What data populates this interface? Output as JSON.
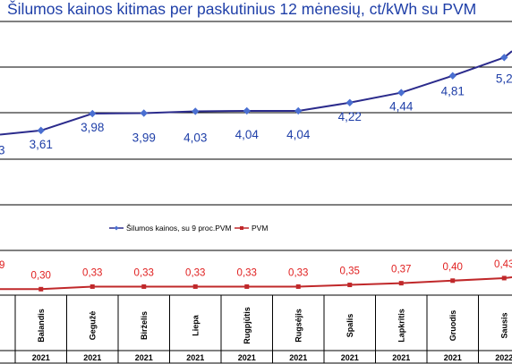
{
  "chart_data": {
    "type": "line",
    "title": "Šilumos kainos kitimas per paskutinius 12 mėnesių, ct/kWh su PVM",
    "categories": [
      "Balandis",
      "Gegužė",
      "Birželis",
      "Liepa",
      "Rugpjūtis",
      "Rugsėjis",
      "Spalis",
      "Lapkritis",
      "Gruodis",
      "Sausis"
    ],
    "years": [
      "2021",
      "2021",
      "2021",
      "2021",
      "2021",
      "2021",
      "2021",
      "2021",
      "2021",
      "2022"
    ],
    "edge_left": {
      "price_label": "3",
      "vat_label": "9"
    },
    "series": [
      {
        "name": "Šilumos kainos, su 9 proc.PVM",
        "color": "#2b2b8c",
        "values": [
          3.61,
          3.98,
          3.99,
          4.03,
          4.04,
          4.04,
          4.22,
          4.44,
          4.81,
          5.21
        ],
        "labels": [
          "3,61",
          "3,98",
          "3,99",
          "4,03",
          "4,04",
          "4,04",
          "4,22",
          "4,44",
          "4,81",
          "5,2"
        ]
      },
      {
        "name": "PVM",
        "color": "#c0282a",
        "values": [
          0.3,
          0.33,
          0.33,
          0.33,
          0.33,
          0.33,
          0.35,
          0.37,
          0.4,
          0.43
        ],
        "labels": [
          "0,30",
          "0,33",
          "0,33",
          "0,33",
          "0,33",
          "0,33",
          "0,35",
          "0,37",
          "0,40",
          "0,43"
        ]
      }
    ],
    "legend_position": "middle-center",
    "grid": true
  }
}
